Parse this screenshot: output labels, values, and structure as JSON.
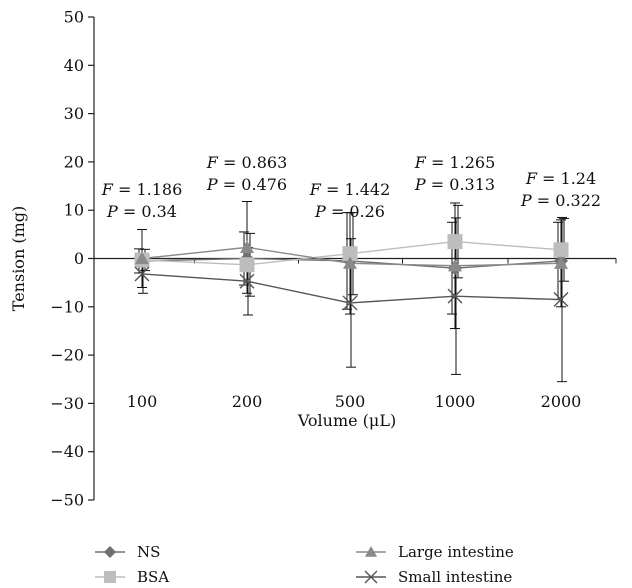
{
  "chart_data": {
    "type": "line",
    "xlabel": "Volume (μL)",
    "ylabel": "Tension (mg)",
    "ylim": [
      -50,
      50
    ],
    "yticks": [
      -50,
      -40,
      -30,
      -20,
      -10,
      0,
      10,
      20,
      30,
      40,
      50
    ],
    "categories": [
      "100",
      "200",
      "500",
      "1000",
      "2000"
    ],
    "grid": false,
    "legend_placement": "bottom",
    "series": [
      {
        "name": "NS",
        "marker": "diamond",
        "color": "#707070",
        "values": [
          -0.5,
          0.0,
          -0.5,
          -2.0,
          -0.5
        ],
        "errors": [
          2.5,
          5.5,
          10.0,
          9.5,
          8.0
        ]
      },
      {
        "name": "BSA",
        "marker": "square",
        "color": "#bdbdbd",
        "values": [
          -0.3,
          -1.3,
          1.0,
          3.5,
          1.8
        ],
        "errors": [
          2.2,
          6.5,
          8.5,
          7.5,
          6.5
        ]
      },
      {
        "name": "Large intestine",
        "marker": "triangle",
        "color": "#8a8a8a",
        "values": [
          0.0,
          2.3,
          -1.0,
          -1.5,
          -1.0
        ],
        "errors": [
          6.0,
          9.5,
          10.5,
          13.0,
          9.0
        ]
      },
      {
        "name": "Small intestine",
        "marker": "x",
        "color": "#555555",
        "values": [
          -3.2,
          -4.7,
          -9.2,
          -7.8,
          -8.5
        ],
        "errors": [
          4.0,
          7.0,
          13.3,
          16.2,
          17.0
        ]
      }
    ],
    "annotations": [
      {
        "category": "100",
        "f": "= 1.186",
        "p": "= 0.34"
      },
      {
        "category": "200",
        "f": "= 0.863",
        "p": "= 0.476"
      },
      {
        "category": "500",
        "f": "= 1.442",
        "p": "= 0.26"
      },
      {
        "category": "1000",
        "f": "= 1.265",
        "p": "= 0.313"
      },
      {
        "category": "2000",
        "f": "= 1.24",
        "p": "= 0.322"
      }
    ]
  }
}
